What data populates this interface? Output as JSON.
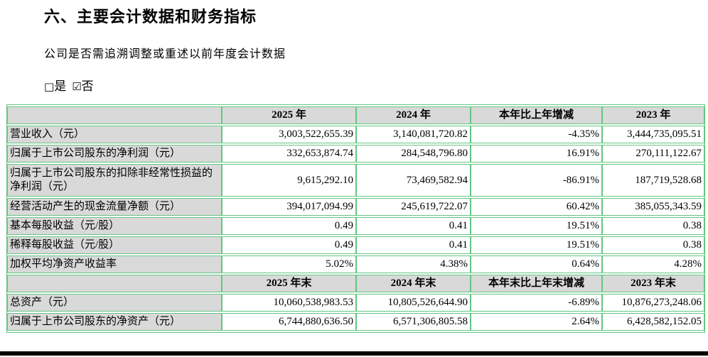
{
  "colors": {
    "table_border": "#63c583",
    "header_cell_bg": "#d9d9d9",
    "label_cell_bg": "#d9d9d9",
    "text": "#000000",
    "bottom_divider": "#000000",
    "background": "#ffffff"
  },
  "section": {
    "title": "六、主要会计数据和财务指标",
    "question": "公司是否需追溯调整或重述以前年度会计数据",
    "options": [
      {
        "box": "□",
        "label": "是",
        "checked": false
      },
      {
        "box": "☑",
        "label": "否",
        "checked": true
      }
    ]
  },
  "table": {
    "rows": [
      {
        "type": "header",
        "cells": [
          "",
          "2025 年",
          "2024 年",
          "本年比上年增减",
          "2023 年"
        ]
      },
      {
        "type": "data",
        "label": "营业收入（元）",
        "values": [
          "3,003,522,655.39",
          "3,140,081,720.82",
          "-4.35%",
          "3,444,735,095.51"
        ]
      },
      {
        "type": "data",
        "label": "归属于上市公司股东的净利润（元）",
        "values": [
          "332,653,874.74",
          "284,548,796.80",
          "16.91%",
          "270,111,122.67"
        ]
      },
      {
        "type": "data",
        "label": "归属于上市公司股东的扣除非经常性损益的净利润（元）",
        "values": [
          "9,615,292.10",
          "73,469,582.94",
          "-86.91%",
          "187,719,528.68"
        ]
      },
      {
        "type": "data",
        "label": "经营活动产生的现金流量净额（元）",
        "values": [
          "394,017,094.99",
          "245,619,722.07",
          "60.42%",
          "385,055,343.59"
        ]
      },
      {
        "type": "data",
        "label": "基本每股收益（元/股）",
        "values": [
          "0.49",
          "0.41",
          "19.51%",
          "0.38"
        ]
      },
      {
        "type": "data",
        "label": "稀释每股收益（元/股）",
        "values": [
          "0.49",
          "0.41",
          "19.51%",
          "0.38"
        ]
      },
      {
        "type": "data",
        "label": "加权平均净资产收益率",
        "values": [
          "5.02%",
          "4.38%",
          "0.64%",
          "4.28%"
        ]
      },
      {
        "type": "header",
        "cells": [
          "",
          "2025 年末",
          "2024 年末",
          "本年末比上年末增减",
          "2023 年末"
        ]
      },
      {
        "type": "data",
        "label": "总资产（元）",
        "values": [
          "10,060,538,983.53",
          "10,805,526,644.90",
          "-6.89%",
          "10,876,273,248.06"
        ]
      },
      {
        "type": "data",
        "label": "归属于上市公司股东的净资产（元）",
        "values": [
          "6,744,880,636.50",
          "6,571,306,805.58",
          "2.64%",
          "6,428,582,152.05"
        ]
      }
    ]
  }
}
